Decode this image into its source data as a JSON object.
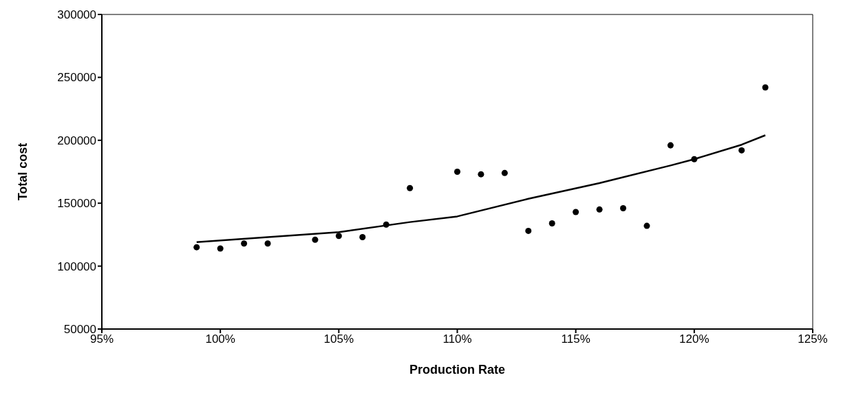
{
  "chart_data": {
    "type": "scatter",
    "xlabel": "Production Rate",
    "ylabel": "Total cost",
    "xlim": [
      95,
      125
    ],
    "xticks": [
      {
        "value": 95,
        "label": "95%"
      },
      {
        "value": 100,
        "label": "100%"
      },
      {
        "value": 105,
        "label": "105%"
      },
      {
        "value": 110,
        "label": "110%"
      },
      {
        "value": 115,
        "label": "115%"
      },
      {
        "value": 120,
        "label": "120%"
      },
      {
        "value": 125,
        "label": "125%"
      }
    ],
    "ylim": [
      50000,
      300000
    ],
    "yticks": [
      50000,
      100000,
      150000,
      200000,
      250000,
      300000
    ],
    "grid": false,
    "legend": false,
    "series": [
      {
        "color": "#000000",
        "marker": "circle",
        "x": [
          99,
          100,
          101,
          102,
          104,
          105,
          106,
          107,
          108,
          110,
          111,
          112,
          113,
          114,
          115,
          116,
          117,
          118,
          119,
          120,
          122,
          123
        ],
        "values": [
          115000,
          114000,
          118000,
          118000,
          121000,
          124000,
          123000,
          133000,
          162000,
          175000,
          173000,
          174000,
          128000,
          134000,
          143000,
          145000,
          146000,
          132000,
          196000,
          185000,
          192000,
          242000
        ]
      },
      {
        "type": "line",
        "color": "#000000",
        "marker": "none",
        "line_style": "solid",
        "x": [
          99,
          105,
          108,
          110,
          113,
          116,
          119,
          120,
          122,
          123
        ],
        "values": [
          119000,
          127000,
          135000,
          139500,
          153500,
          166000,
          180000,
          185000,
          196500,
          204000
        ]
      }
    ]
  }
}
